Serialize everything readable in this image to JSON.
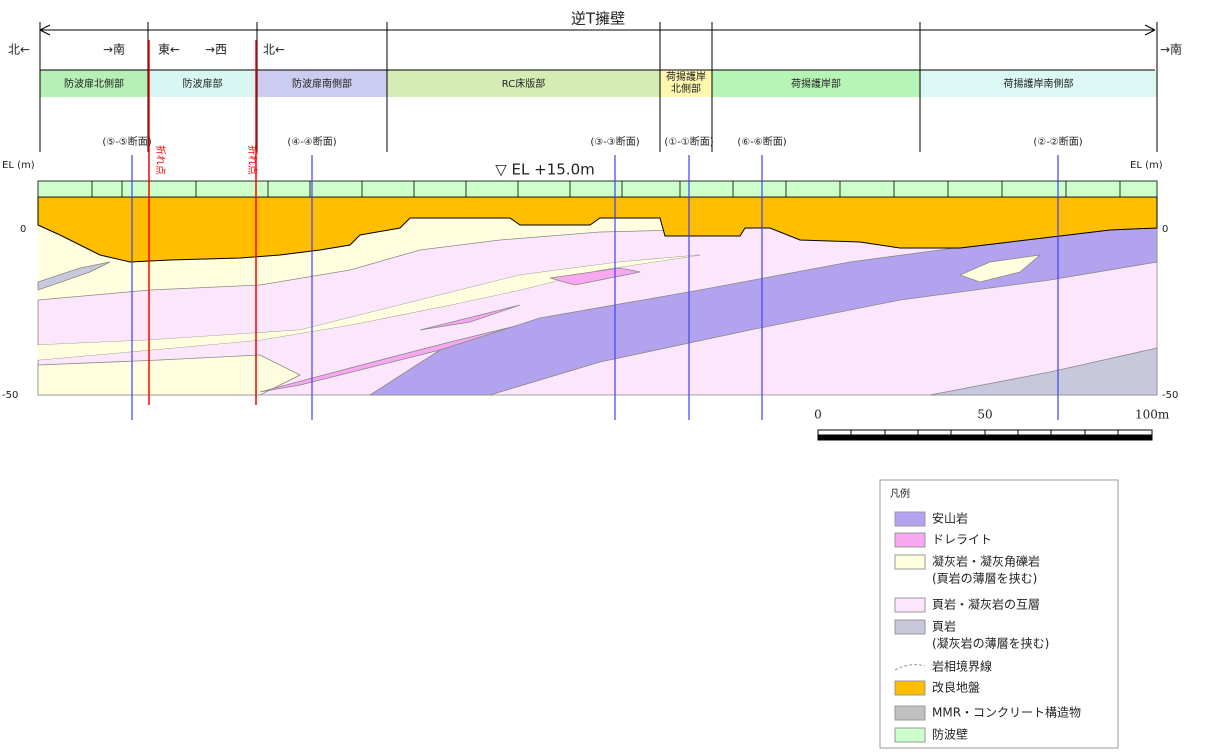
{
  "header": {
    "title": "逆T擁壁",
    "left_direction": "北←",
    "right_direction": "→南"
  },
  "directions": [
    "→南",
    "東←",
    "→西",
    "北←"
  ],
  "sections": [
    [
      "防波扉北側部"
    ],
    [
      "防波扉部"
    ],
    [
      "防波扉南側部"
    ],
    [
      "RC床版部"
    ],
    [
      "荷揚護岸",
      "北側部"
    ],
    [
      "荷揚護岸部"
    ],
    [
      "荷揚護岸南側部"
    ]
  ],
  "cross_sections": [
    "(⑤-⑤断面)",
    "(④-④断面)",
    "(③-③断面)",
    "(①-①断面)",
    "(⑥-⑥断面)",
    "(②-②断面)"
  ],
  "bend_points": [
    "折れ点",
    "折れ点"
  ],
  "elevation": {
    "left_label": "EL (m)",
    "right_label": "EL (m)",
    "crest": "▽ EL +15.0m",
    "ticks": [
      "0",
      "-50"
    ]
  },
  "scale": [
    "0",
    "50",
    "100m"
  ],
  "legend": {
    "title": "凡例",
    "items": [
      [
        "安山岩"
      ],
      [
        "ドレライト"
      ],
      [
        "凝灰岩・凝灰角礫岩",
        "(頁岩の薄層を挟む)"
      ],
      [
        "頁岩・凝灰岩の互層"
      ],
      [
        "頁岩",
        "(凝灰岩の薄層を挟む)"
      ],
      [
        "岩相境界線"
      ],
      [
        "改良地盤"
      ],
      [
        "MMR・コンクリート構造物"
      ],
      [
        "防波壁"
      ]
    ]
  }
}
